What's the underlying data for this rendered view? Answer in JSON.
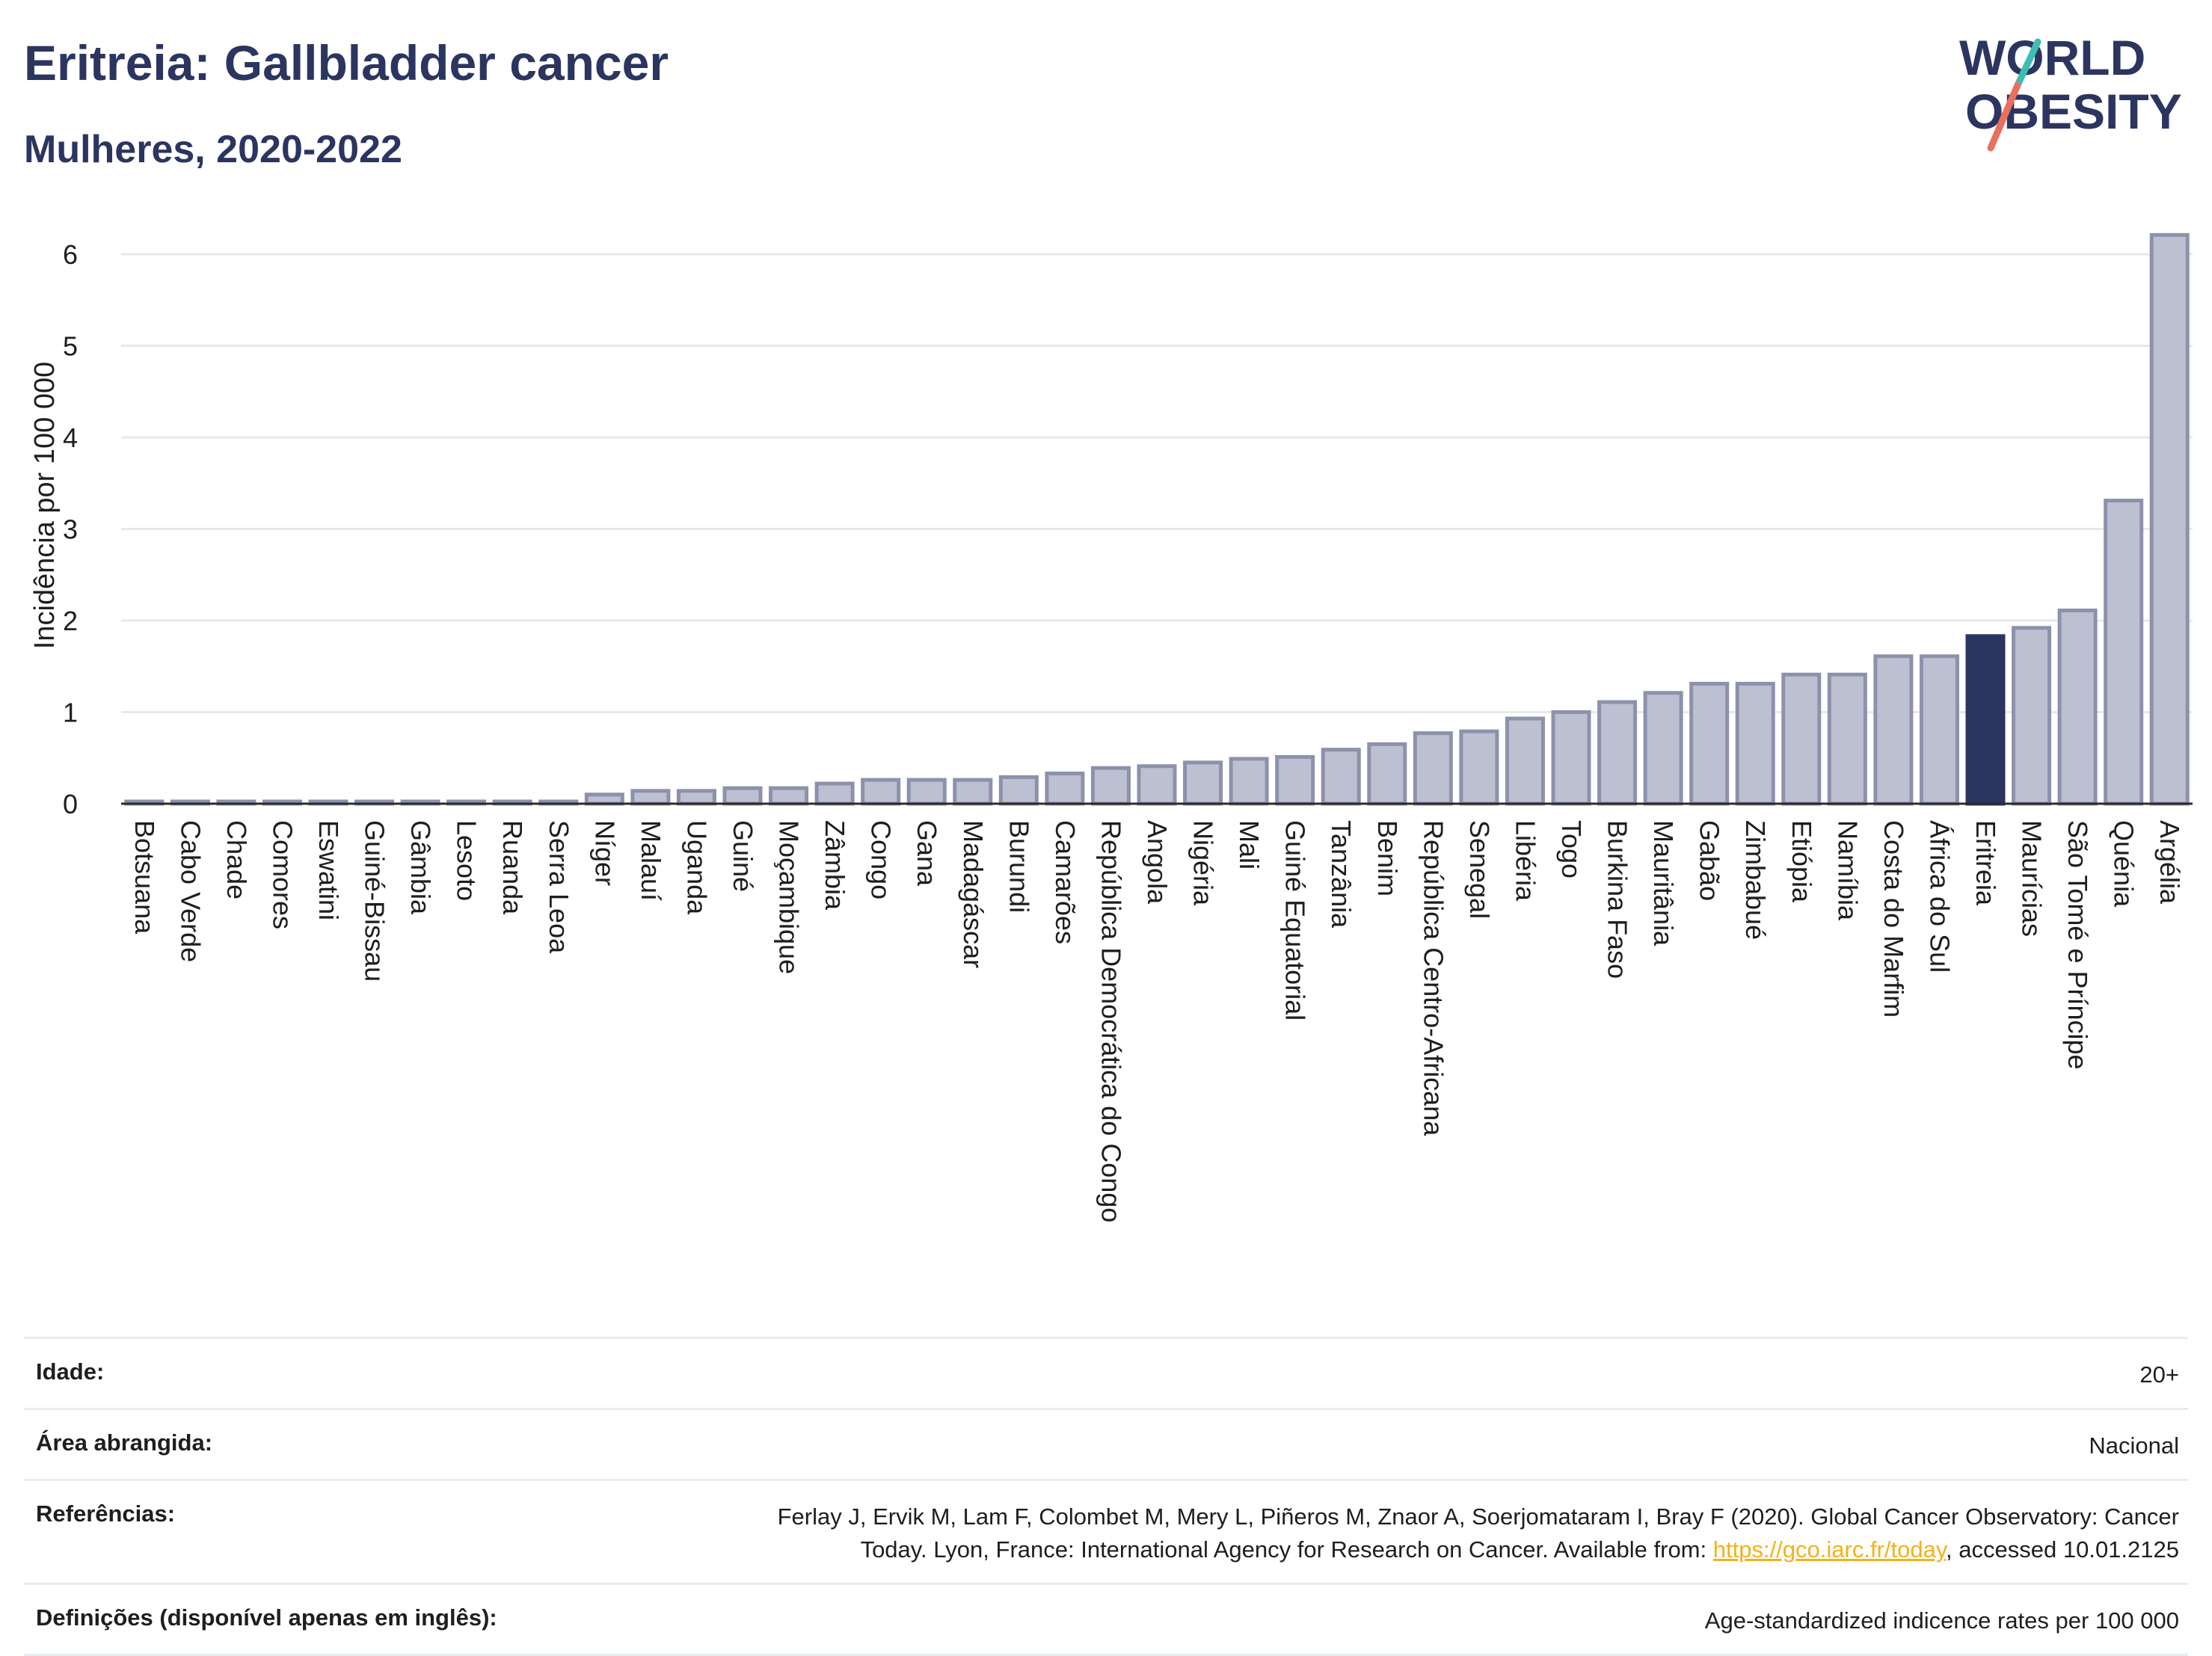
{
  "header": {
    "title": "Eritreia: Gallbladder cancer",
    "subtitle": "Mulheres, 2020-2022",
    "logo_line1": "WORLD",
    "logo_line2": "OBESITY"
  },
  "colors": {
    "bar": "#bcc0d0",
    "bar_stroke": "#8c92ab",
    "highlight": "#2b3560",
    "title": "#2b3560",
    "grid": "#e6e8ef",
    "logo_teal": "#3fbdb3",
    "logo_coral": "#e8705f",
    "link": "#f2b21a"
  },
  "chart_data": {
    "type": "bar",
    "ylabel": "Incidência por 100 000",
    "ylim": [
      0,
      6.4
    ],
    "yticks": [
      0,
      1,
      2,
      3,
      4,
      5,
      6
    ],
    "grid": true,
    "highlight": "Eritreia",
    "categories": [
      "Botsuana",
      "Cabo Verde",
      "Chade",
      "Comores",
      "Eswatini",
      "Guiné-Bissau",
      "Gâmbia",
      "Lesoto",
      "Ruanda",
      "Serra Leoa",
      "Níger",
      "Malauí",
      "Uganda",
      "Guiné",
      "Moçambique",
      "Zâmbia",
      "Congo",
      "Gana",
      "Madagáscar",
      "Burundi",
      "Camarões",
      "República Democrática do Congo",
      "Angola",
      "Nigéria",
      "Mali",
      "Guiné Equatorial",
      "Tanzânia",
      "Benim",
      "República Centro-Africana",
      "Senegal",
      "Libéria",
      "Togo",
      "Burkina Faso",
      "Mauritânia",
      "Gabão",
      "Zimbabué",
      "Etiópia",
      "Namíbia",
      "Costa do Marfim",
      "África do Sul",
      "Eritreia",
      "Maurícias",
      "São Tomé e Príncipe",
      "Quénia",
      "Argélia"
    ],
    "values": [
      0.02,
      0.02,
      0.02,
      0.02,
      0.02,
      0.02,
      0.02,
      0.02,
      0.02,
      0.02,
      0.1,
      0.14,
      0.14,
      0.17,
      0.17,
      0.22,
      0.26,
      0.26,
      0.26,
      0.29,
      0.33,
      0.39,
      0.41,
      0.45,
      0.49,
      0.51,
      0.59,
      0.65,
      0.77,
      0.79,
      0.93,
      1.0,
      1.11,
      1.21,
      1.31,
      1.31,
      1.41,
      1.41,
      1.61,
      1.61,
      1.83,
      1.92,
      2.11,
      3.31,
      6.21
    ]
  },
  "meta": [
    {
      "label": "Idade:",
      "value": "20+"
    },
    {
      "label": "Área abrangida:",
      "value": "Nacional"
    },
    {
      "label": "Referências:",
      "value_line1": "Ferlay J, Ervik M, Lam F, Colombet M, Mery L, Piñeros M, Znaor A, Soerjomataram I, Bray F (2020). Global Cancer Observatory: Cancer",
      "value_line2_pre": "Today. Lyon, France: International Agency for Research on Cancer. Available from: ",
      "link": "https://gco.iarc.fr/today",
      "value_line2_post": ", accessed 10.01.2125"
    },
    {
      "label": "Definições (disponível apenas em inglês):",
      "value": "Age-standardized indicence rates per 100 000"
    }
  ]
}
